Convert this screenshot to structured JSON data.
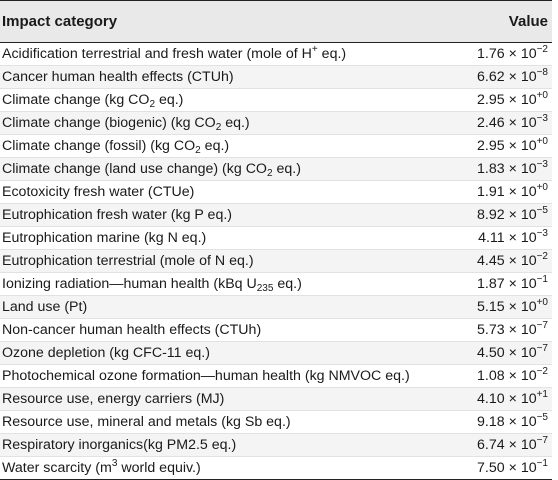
{
  "table": {
    "headers": {
      "category": "Impact category",
      "value": "Value"
    },
    "rows": [
      {
        "category": [
          {
            "t": "Acidification terrestrial and fresh water (mole of H"
          },
          {
            "sup": "+"
          },
          {
            "t": " eq.)"
          }
        ],
        "mantissa": "1.76",
        "exponent": "−2"
      },
      {
        "category": [
          {
            "t": "Cancer human health effects (CTUh)"
          }
        ],
        "mantissa": "6.62",
        "exponent": "−8"
      },
      {
        "category": [
          {
            "t": "Climate change (kg CO"
          },
          {
            "sub": "2"
          },
          {
            "t": " eq.)"
          }
        ],
        "mantissa": "2.95",
        "exponent": "+0"
      },
      {
        "category": [
          {
            "t": "Climate change (biogenic) (kg CO"
          },
          {
            "sub": "2"
          },
          {
            "t": " eq.)"
          }
        ],
        "mantissa": "2.46",
        "exponent": "−3"
      },
      {
        "category": [
          {
            "t": "Climate change (fossil) (kg CO"
          },
          {
            "sub": "2"
          },
          {
            "t": " eq.)"
          }
        ],
        "mantissa": "2.95",
        "exponent": "+0"
      },
      {
        "category": [
          {
            "t": "Climate change (land use change) (kg CO"
          },
          {
            "sub": "2"
          },
          {
            "t": " eq.)"
          }
        ],
        "mantissa": "1.83",
        "exponent": "−3"
      },
      {
        "category": [
          {
            "t": "Ecotoxicity fresh water (CTUe)"
          }
        ],
        "mantissa": "1.91",
        "exponent": "+0"
      },
      {
        "category": [
          {
            "t": "Eutrophication fresh water (kg P eq.)"
          }
        ],
        "mantissa": "8.92",
        "exponent": "−5"
      },
      {
        "category": [
          {
            "t": "Eutrophication marine (kg N eq.)"
          }
        ],
        "mantissa": "4.11",
        "exponent": "−3"
      },
      {
        "category": [
          {
            "t": "Eutrophication terrestrial (mole of N eq.)"
          }
        ],
        "mantissa": "4.45",
        "exponent": "−2"
      },
      {
        "category": [
          {
            "t": "Ionizing radiation—human health (kBq U"
          },
          {
            "sub": "235"
          },
          {
            "t": " eq.)"
          }
        ],
        "mantissa": "1.87",
        "exponent": "−1"
      },
      {
        "category": [
          {
            "t": "Land use (Pt)"
          }
        ],
        "mantissa": "5.15",
        "exponent": "+0"
      },
      {
        "category": [
          {
            "t": "Non-cancer human health effects (CTUh)"
          }
        ],
        "mantissa": "5.73",
        "exponent": "−7"
      },
      {
        "category": [
          {
            "t": "Ozone depletion (kg CFC-11 eq.)"
          }
        ],
        "mantissa": "4.50",
        "exponent": "−7"
      },
      {
        "category": [
          {
            "t": "Photochemical ozone formation—human health (kg NMVOC eq.)"
          }
        ],
        "mantissa": "1.08",
        "exponent": "−2"
      },
      {
        "category": [
          {
            "t": "Resource use, energy carriers (MJ)"
          }
        ],
        "mantissa": "4.10",
        "exponent": "+1"
      },
      {
        "category": [
          {
            "t": "Resource use, mineral and metals (kg Sb eq.)"
          }
        ],
        "mantissa": "9.18",
        "exponent": "−5"
      },
      {
        "category": [
          {
            "t": "Respiratory inorganics(kg PM2.5 eq.)"
          }
        ],
        "mantissa": "6.74",
        "exponent": "−7"
      },
      {
        "category": [
          {
            "t": "Water scarcity (m"
          },
          {
            "sup": "3"
          },
          {
            "t": " world equiv.)"
          }
        ],
        "mantissa": "7.50",
        "exponent": "−1"
      }
    ],
    "multiply_sign": " × ",
    "base": "10"
  }
}
